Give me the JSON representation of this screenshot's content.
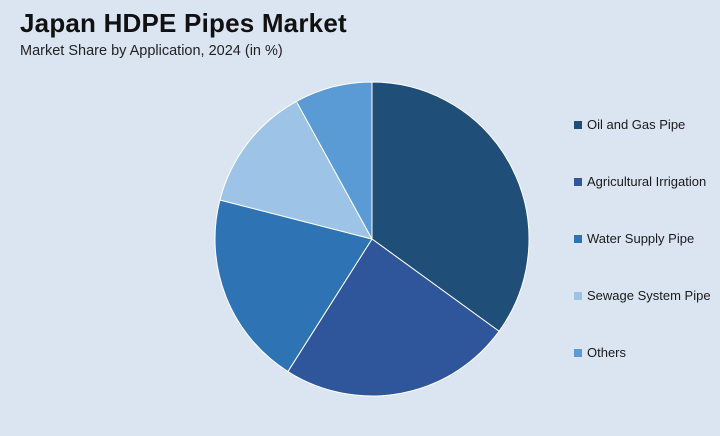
{
  "chart_data": {
    "type": "pie",
    "title": "Japan HDPE Pipes Market",
    "subtitle": "Market Share by Application, 2024 (in %)",
    "legend_position": "right",
    "slices": [
      {
        "label": "Oil and Gas Pipe",
        "value": 35,
        "color": "#1f4e79"
      },
      {
        "label": "Agricultural Irrigation",
        "value": 24,
        "color": "#2f559b"
      },
      {
        "label": "Water Supply Pipe",
        "value": 20,
        "color": "#2e74b5"
      },
      {
        "label": "Sewage System Pipe",
        "value": 13,
        "color": "#9dc3e6"
      },
      {
        "label": "Others",
        "value": 8,
        "color": "#5b9bd5"
      }
    ]
  }
}
